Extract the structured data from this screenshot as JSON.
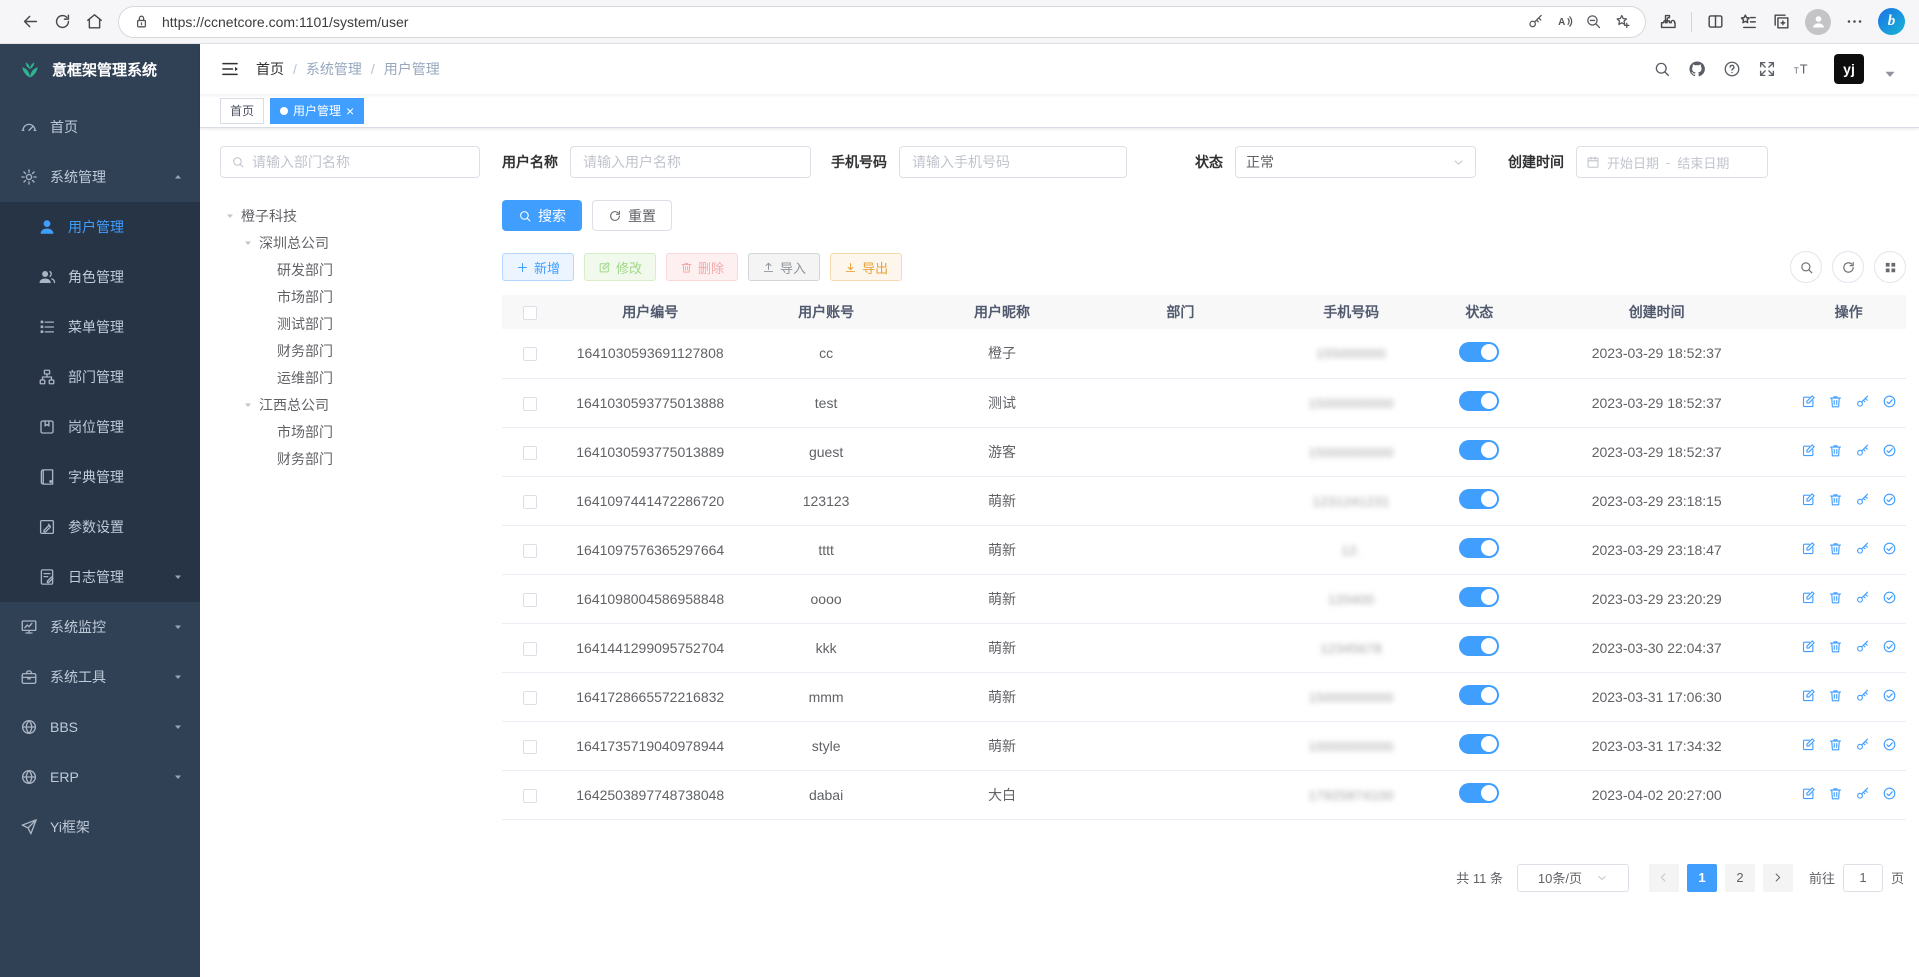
{
  "colors": {
    "primary": "#409eff",
    "sidebar_bg": "#304156",
    "submenu_bg": "#263445",
    "logo_green": "#2eb490",
    "tab_active": "#409eff"
  },
  "browser": {
    "url": "https://ccnetcore.com:1101/system/user"
  },
  "sidebar": {
    "logo_title": "意框架管理系统",
    "items": [
      {
        "label": "首页",
        "icon": "dashboard-icon"
      },
      {
        "label": "系统管理",
        "icon": "gear-icon",
        "arrow": "up"
      },
      {
        "label": "用户管理",
        "icon": "user-icon",
        "sub": true,
        "active": true
      },
      {
        "label": "角色管理",
        "icon": "role-icon",
        "sub": true
      },
      {
        "label": "菜单管理",
        "icon": "menu-icon",
        "sub": true
      },
      {
        "label": "部门管理",
        "icon": "dept-icon",
        "sub": true
      },
      {
        "label": "岗位管理",
        "icon": "post-icon",
        "sub": true
      },
      {
        "label": "字典管理",
        "icon": "dict-icon",
        "sub": true
      },
      {
        "label": "参数设置",
        "icon": "param-icon",
        "sub": true
      },
      {
        "label": "日志管理",
        "icon": "log-icon",
        "sub": true,
        "arrow": "down"
      },
      {
        "label": "系统监控",
        "icon": "monitor-icon",
        "arrow": "down"
      },
      {
        "label": "系统工具",
        "icon": "tool-icon",
        "arrow": "down"
      },
      {
        "label": "BBS",
        "icon": "globe-icon",
        "arrow": "down"
      },
      {
        "label": "ERP",
        "icon": "globe-icon",
        "arrow": "down"
      },
      {
        "label": "Yi框架",
        "icon": "send-icon"
      }
    ]
  },
  "header": {
    "breadcrumb": [
      "首页",
      "系统管理",
      "用户管理"
    ],
    "avatar_text": "yj"
  },
  "tabs": [
    {
      "label": "首页",
      "active": false,
      "closable": false
    },
    {
      "label": "用户管理",
      "active": true,
      "closable": true
    }
  ],
  "dept_panel": {
    "search_placeholder": "请输入部门名称",
    "tree": [
      {
        "label": "橙子科技",
        "level": 0,
        "expanded": true
      },
      {
        "label": "深圳总公司",
        "level": 1,
        "expanded": true
      },
      {
        "label": "研发部门",
        "level": 2
      },
      {
        "label": "市场部门",
        "level": 2
      },
      {
        "label": "测试部门",
        "level": 2
      },
      {
        "label": "财务部门",
        "level": 2
      },
      {
        "label": "运维部门",
        "level": 2
      },
      {
        "label": "江西总公司",
        "level": 1,
        "expanded": true
      },
      {
        "label": "市场部门",
        "level": 2
      },
      {
        "label": "财务部门",
        "level": 2
      }
    ]
  },
  "filters": {
    "username_label": "用户名称",
    "username_placeholder": "请输入用户名称",
    "phone_label": "手机号码",
    "phone_placeholder": "请输入手机号码",
    "status_label": "状态",
    "status_value": "正常",
    "date_label": "创建时间",
    "date_start_placeholder": "开始日期",
    "date_separator": "-",
    "date_end_placeholder": "结束日期",
    "search_button": "搜索",
    "reset_button": "重置"
  },
  "toolbar": {
    "add": "新增",
    "edit": "修改",
    "delete": "删除",
    "import": "导入",
    "export": "导出"
  },
  "table": {
    "columns": [
      "用户编号",
      "用户账号",
      "用户昵称",
      "部门",
      "手机号码",
      "状态",
      "创建时间",
      "操作"
    ],
    "rows": [
      {
        "id": "1641030593691127808",
        "account": "cc",
        "nickname": "橙子",
        "dept": "",
        "phone": "155000000",
        "status": true,
        "created": "2023-03-29 18:52:37",
        "has_actions": false
      },
      {
        "id": "1641030593775013888",
        "account": "test",
        "nickname": "测试",
        "dept": "",
        "phone": "15000000000",
        "status": true,
        "created": "2023-03-29 18:52:37",
        "has_actions": true
      },
      {
        "id": "1641030593775013889",
        "account": "guest",
        "nickname": "游客",
        "dept": "",
        "phone": "15000000000",
        "status": true,
        "created": "2023-03-29 18:52:37",
        "has_actions": true
      },
      {
        "id": "1641097441472286720",
        "account": "123123",
        "nickname": "萌新",
        "dept": "",
        "phone": "1231241231",
        "status": true,
        "created": "2023-03-29 23:18:15",
        "has_actions": true
      },
      {
        "id": "1641097576365297664",
        "account": "tttt",
        "nickname": "萌新",
        "dept": "",
        "phone": "12.",
        "status": true,
        "created": "2023-03-29 23:18:47",
        "has_actions": true
      },
      {
        "id": "1641098004586958848",
        "account": "oooo",
        "nickname": "萌新",
        "dept": "",
        "phone": "120400",
        "status": true,
        "created": "2023-03-29 23:20:29",
        "has_actions": true
      },
      {
        "id": "1641441299095752704",
        "account": "kkk",
        "nickname": "萌新",
        "dept": "",
        "phone": "12345678",
        "status": true,
        "created": "2023-03-30 22:04:37",
        "has_actions": true
      },
      {
        "id": "1641728665572216832",
        "account": "mmm",
        "nickname": "萌新",
        "dept": "",
        "phone": "15000000000",
        "status": true,
        "created": "2023-03-31 17:06:30",
        "has_actions": true
      },
      {
        "id": "1641735719040978944",
        "account": "style",
        "nickname": "萌新",
        "dept": "",
        "phone": "10000000000",
        "status": true,
        "created": "2023-03-31 17:34:32",
        "has_actions": true
      },
      {
        "id": "1642503897748738048",
        "account": "dabai",
        "nickname": "大白",
        "dept": "",
        "phone": "17925874100",
        "status": true,
        "created": "2023-04-02 20:27:00",
        "has_actions": true
      }
    ]
  },
  "pagination": {
    "total_label": "共 11 条",
    "page_size": "10条/页",
    "pages": [
      "1",
      "2"
    ],
    "current": "1",
    "jump_prefix": "前往",
    "jump_value": "1",
    "jump_suffix": "页"
  }
}
